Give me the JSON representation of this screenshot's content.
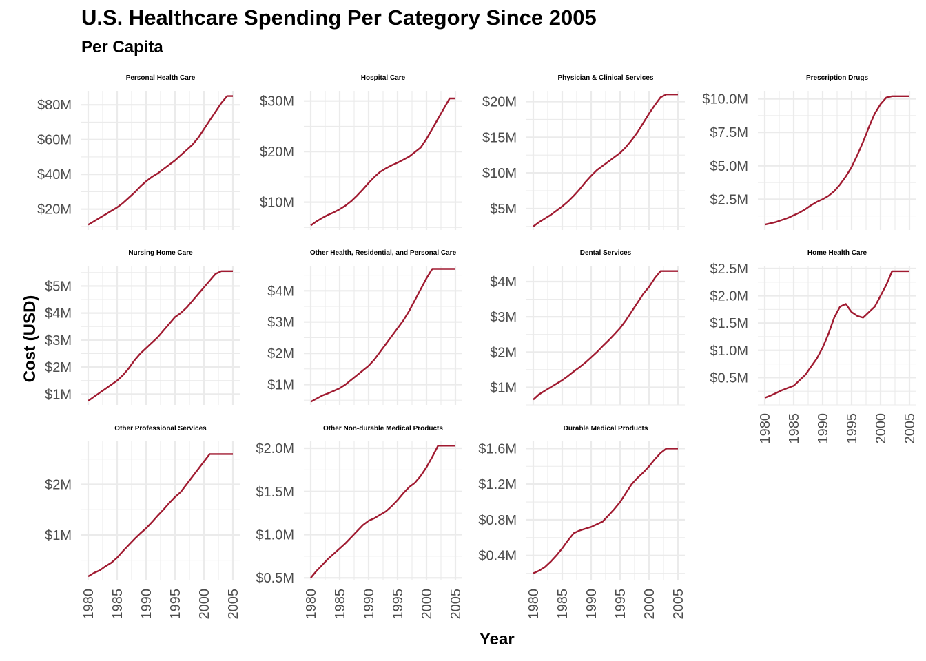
{
  "title": "U.S. Healthcare Spending Per Category Since 2005",
  "subtitle": "Per Capita",
  "xlabel": "Year",
  "ylabel": "Cost (USD)",
  "line_color": "#A01A30",
  "grid_color": "#EBEBEB",
  "chart_data": {
    "type": "line",
    "x_range": [
      1980,
      2005
    ],
    "x_ticks": [
      1980,
      1985,
      1990,
      1995,
      2000,
      2005
    ],
    "x": [
      1980,
      1981,
      1982,
      1983,
      1984,
      1985,
      1986,
      1987,
      1988,
      1989,
      1990,
      1991,
      1992,
      1993,
      1994,
      1995,
      1996,
      1997,
      1998,
      1999,
      2000,
      2001,
      2002,
      2003,
      2004,
      2005
    ],
    "panels": [
      {
        "name": "Personal Health Care",
        "ylim": [
          8,
          88
        ],
        "y_ticks": [
          20,
          40,
          60,
          80
        ],
        "y_tick_labels": [
          "$20M",
          "$40M",
          "$60M",
          "$80M"
        ],
        "values": [
          11,
          13,
          15,
          17,
          19,
          21,
          23.5,
          26.5,
          29.5,
          33,
          36,
          38.5,
          40.5,
          43,
          45.5,
          48,
          51,
          54,
          57,
          61,
          66,
          71,
          76,
          81,
          85,
          85
        ]
      },
      {
        "name": "Hospital Care",
        "ylim": [
          4.5,
          32
        ],
        "y_ticks": [
          10,
          20,
          30
        ],
        "y_tick_labels": [
          "$10M",
          "$20M",
          "$30M"
        ],
        "values": [
          5.4,
          6.2,
          6.9,
          7.5,
          8,
          8.6,
          9.3,
          10.2,
          11.3,
          12.5,
          13.8,
          15,
          16,
          16.7,
          17.3,
          17.8,
          18.4,
          19,
          19.9,
          20.8,
          22.5,
          24.5,
          26.5,
          28.5,
          30.5,
          30.5
        ]
      },
      {
        "name": "Physician & Clinical Services",
        "ylim": [
          2,
          21.5
        ],
        "y_ticks": [
          5,
          10,
          15,
          20
        ],
        "y_tick_labels": [
          "$5M",
          "$10M",
          "$15M",
          "$20M"
        ],
        "values": [
          2.5,
          3.1,
          3.6,
          4.1,
          4.7,
          5.3,
          6,
          6.8,
          7.7,
          8.7,
          9.6,
          10.4,
          11,
          11.6,
          12.2,
          12.8,
          13.6,
          14.6,
          15.7,
          17,
          18.3,
          19.5,
          20.6,
          21,
          21,
          21
        ]
      },
      {
        "name": "Prescription Drugs",
        "ylim": [
          0.2,
          10.6
        ],
        "y_ticks": [
          2.5,
          5,
          7.5,
          10
        ],
        "y_tick_labels": [
          "$2.5M",
          "$5.0M",
          "$7.5M",
          "$10.0M"
        ],
        "values": [
          0.6,
          0.7,
          0.8,
          0.95,
          1.1,
          1.3,
          1.5,
          1.75,
          2.05,
          2.3,
          2.5,
          2.75,
          3.1,
          3.6,
          4.2,
          4.9,
          5.8,
          6.8,
          7.9,
          8.9,
          9.6,
          10.1,
          10.2,
          10.2,
          10.2,
          10.2
        ]
      },
      {
        "name": "Nursing Home Care",
        "ylim": [
          0.6,
          5.75
        ],
        "y_ticks": [
          1,
          2,
          3,
          4,
          5
        ],
        "y_tick_labels": [
          "$1M",
          "$2M",
          "$3M",
          "$4M",
          "$5M"
        ],
        "values": [
          0.75,
          0.9,
          1.05,
          1.2,
          1.35,
          1.5,
          1.7,
          1.95,
          2.25,
          2.5,
          2.7,
          2.9,
          3.1,
          3.35,
          3.6,
          3.85,
          4.0,
          4.2,
          4.45,
          4.7,
          4.95,
          5.2,
          5.45,
          5.55,
          5.55,
          5.55
        ]
      },
      {
        "name": "Other Health, Residential, and Personal Care",
        "ylim": [
          0.35,
          4.8
        ],
        "y_ticks": [
          1,
          2,
          3,
          4
        ],
        "y_tick_labels": [
          "$1M",
          "$2M",
          "$3M",
          "$4M"
        ],
        "values": [
          0.45,
          0.55,
          0.65,
          0.72,
          0.8,
          0.88,
          1,
          1.15,
          1.3,
          1.45,
          1.6,
          1.8,
          2.05,
          2.3,
          2.55,
          2.8,
          3.05,
          3.35,
          3.7,
          4.05,
          4.4,
          4.7,
          4.7,
          4.7,
          4.7,
          4.7
        ]
      },
      {
        "name": "Dental Services",
        "ylim": [
          0.5,
          4.45
        ],
        "y_ticks": [
          1,
          2,
          3,
          4
        ],
        "y_tick_labels": [
          "$1M",
          "$2M",
          "$3M",
          "$4M"
        ],
        "values": [
          0.65,
          0.8,
          0.9,
          1,
          1.1,
          1.2,
          1.32,
          1.45,
          1.57,
          1.7,
          1.85,
          2.0,
          2.17,
          2.33,
          2.5,
          2.68,
          2.9,
          3.15,
          3.4,
          3.65,
          3.85,
          4.1,
          4.3,
          4.3,
          4.3,
          4.3
        ]
      },
      {
        "name": "Home Health Care",
        "ylim": [
          0,
          2.55
        ],
        "y_ticks": [
          0.5,
          1,
          1.5,
          2,
          2.5
        ],
        "y_tick_labels": [
          "$0.5M",
          "$1.0M",
          "$1.5M",
          "$2.0M",
          "$2.5M"
        ],
        "values": [
          0.13,
          0.17,
          0.22,
          0.27,
          0.31,
          0.35,
          0.45,
          0.55,
          0.7,
          0.85,
          1.05,
          1.3,
          1.6,
          1.8,
          1.85,
          1.7,
          1.63,
          1.6,
          1.7,
          1.8,
          2.0,
          2.2,
          2.45,
          2.45,
          2.45,
          2.45
        ]
      },
      {
        "name": "Other Professional Services",
        "ylim": [
          0.1,
          2.85
        ],
        "y_ticks": [
          1,
          2
        ],
        "y_tick_labels": [
          "$1M",
          "$2M"
        ],
        "values": [
          0.18,
          0.25,
          0.3,
          0.38,
          0.45,
          0.55,
          0.68,
          0.8,
          0.92,
          1.03,
          1.13,
          1.25,
          1.38,
          1.5,
          1.63,
          1.75,
          1.85,
          2.0,
          2.15,
          2.3,
          2.45,
          2.6,
          2.6,
          2.6,
          2.6,
          2.6
        ]
      },
      {
        "name": "Other Non-durable Medical Products",
        "ylim": [
          0.47,
          2.08
        ],
        "y_ticks": [
          0.5,
          1,
          1.5,
          2
        ],
        "y_tick_labels": [
          "$0.5M",
          "$1.0M",
          "$1.5M",
          "$2.0M"
        ],
        "values": [
          0.5,
          0.58,
          0.65,
          0.72,
          0.78,
          0.84,
          0.9,
          0.97,
          1.04,
          1.11,
          1.16,
          1.19,
          1.23,
          1.27,
          1.33,
          1.4,
          1.48,
          1.55,
          1.6,
          1.68,
          1.78,
          1.9,
          2.03,
          2.03,
          2.03,
          2.03
        ]
      },
      {
        "name": "Durable Medical Products",
        "ylim": [
          0.12,
          1.68
        ],
        "y_ticks": [
          0.4,
          0.8,
          1.2,
          1.6
        ],
        "y_tick_labels": [
          "$0.4M",
          "$0.8M",
          "$1.2M",
          "$1.6M"
        ],
        "values": [
          0.2,
          0.23,
          0.27,
          0.33,
          0.4,
          0.48,
          0.57,
          0.65,
          0.68,
          0.7,
          0.72,
          0.75,
          0.78,
          0.85,
          0.92,
          1.0,
          1.1,
          1.2,
          1.27,
          1.33,
          1.4,
          1.48,
          1.55,
          1.6,
          1.6,
          1.6
        ]
      }
    ]
  }
}
